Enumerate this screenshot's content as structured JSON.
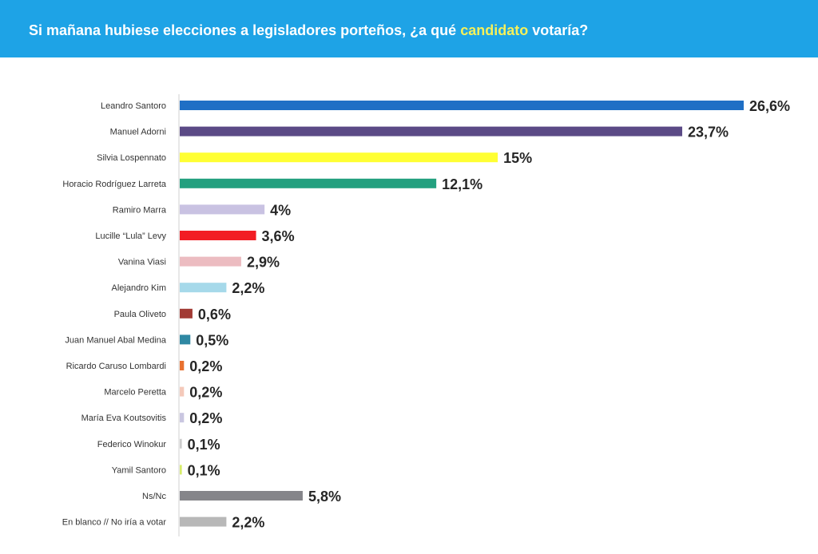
{
  "header": {
    "title_before": "Si mañana hubiese elecciones a legisladores porteños, ¿a qué ",
    "title_highlight": "candidato",
    "title_after": " votaría?",
    "background_color": "#1ea3e6",
    "highlight_color": "#f5f05a"
  },
  "chart_data": {
    "type": "bar",
    "orientation": "horizontal",
    "title": "Si mañana hubiese elecciones a legisladores porteños, ¿a qué candidato votaría?",
    "xlim": [
      0,
      26.6
    ],
    "grid": false,
    "legend": "none",
    "categories": [
      "Leandro Santoro",
      "Manuel Adorni",
      "Silvia Lospennato",
      "Horacio Rodríguez Larreta",
      "Ramiro Marra",
      "Lucille “Lula” Levy",
      "Vanina Viasi",
      "Alejandro Kim",
      "Paula Oliveto",
      "Juan Manuel Abal Medina",
      "Ricardo Caruso Lombardi",
      "Marcelo Peretta",
      "María Eva Koutsovitis",
      "Federico Winokur",
      "Yamil Santoro",
      "Ns/Nc",
      "En blanco // No iría a votar"
    ],
    "values": [
      26.6,
      23.7,
      15,
      12.1,
      4,
      3.6,
      2.9,
      2.2,
      0.6,
      0.5,
      0.2,
      0.2,
      0.2,
      0.1,
      0.1,
      5.8,
      2.2
    ],
    "labels": [
      "26,6%",
      "23,7%",
      "15%",
      "12,1%",
      "4%",
      "3,6%",
      "2,9%",
      "2,2%",
      "0,6%",
      "0,5%",
      "0,2%",
      "0,2%",
      "0,2%",
      "0,1%",
      "0,1%",
      "5,8%",
      "2,2%"
    ],
    "colors": [
      "#1f6fc5",
      "#5b4a86",
      "#ffff33",
      "#23a07f",
      "#c9c2e2",
      "#f21d24",
      "#ecbcc1",
      "#a6d9ea",
      "#a23b35",
      "#2f88a3",
      "#e8702f",
      "#f4c9ba",
      "#c9c6e0",
      "#cccccc",
      "#d7ec6a",
      "#85858a",
      "#b8b8b8"
    ]
  }
}
